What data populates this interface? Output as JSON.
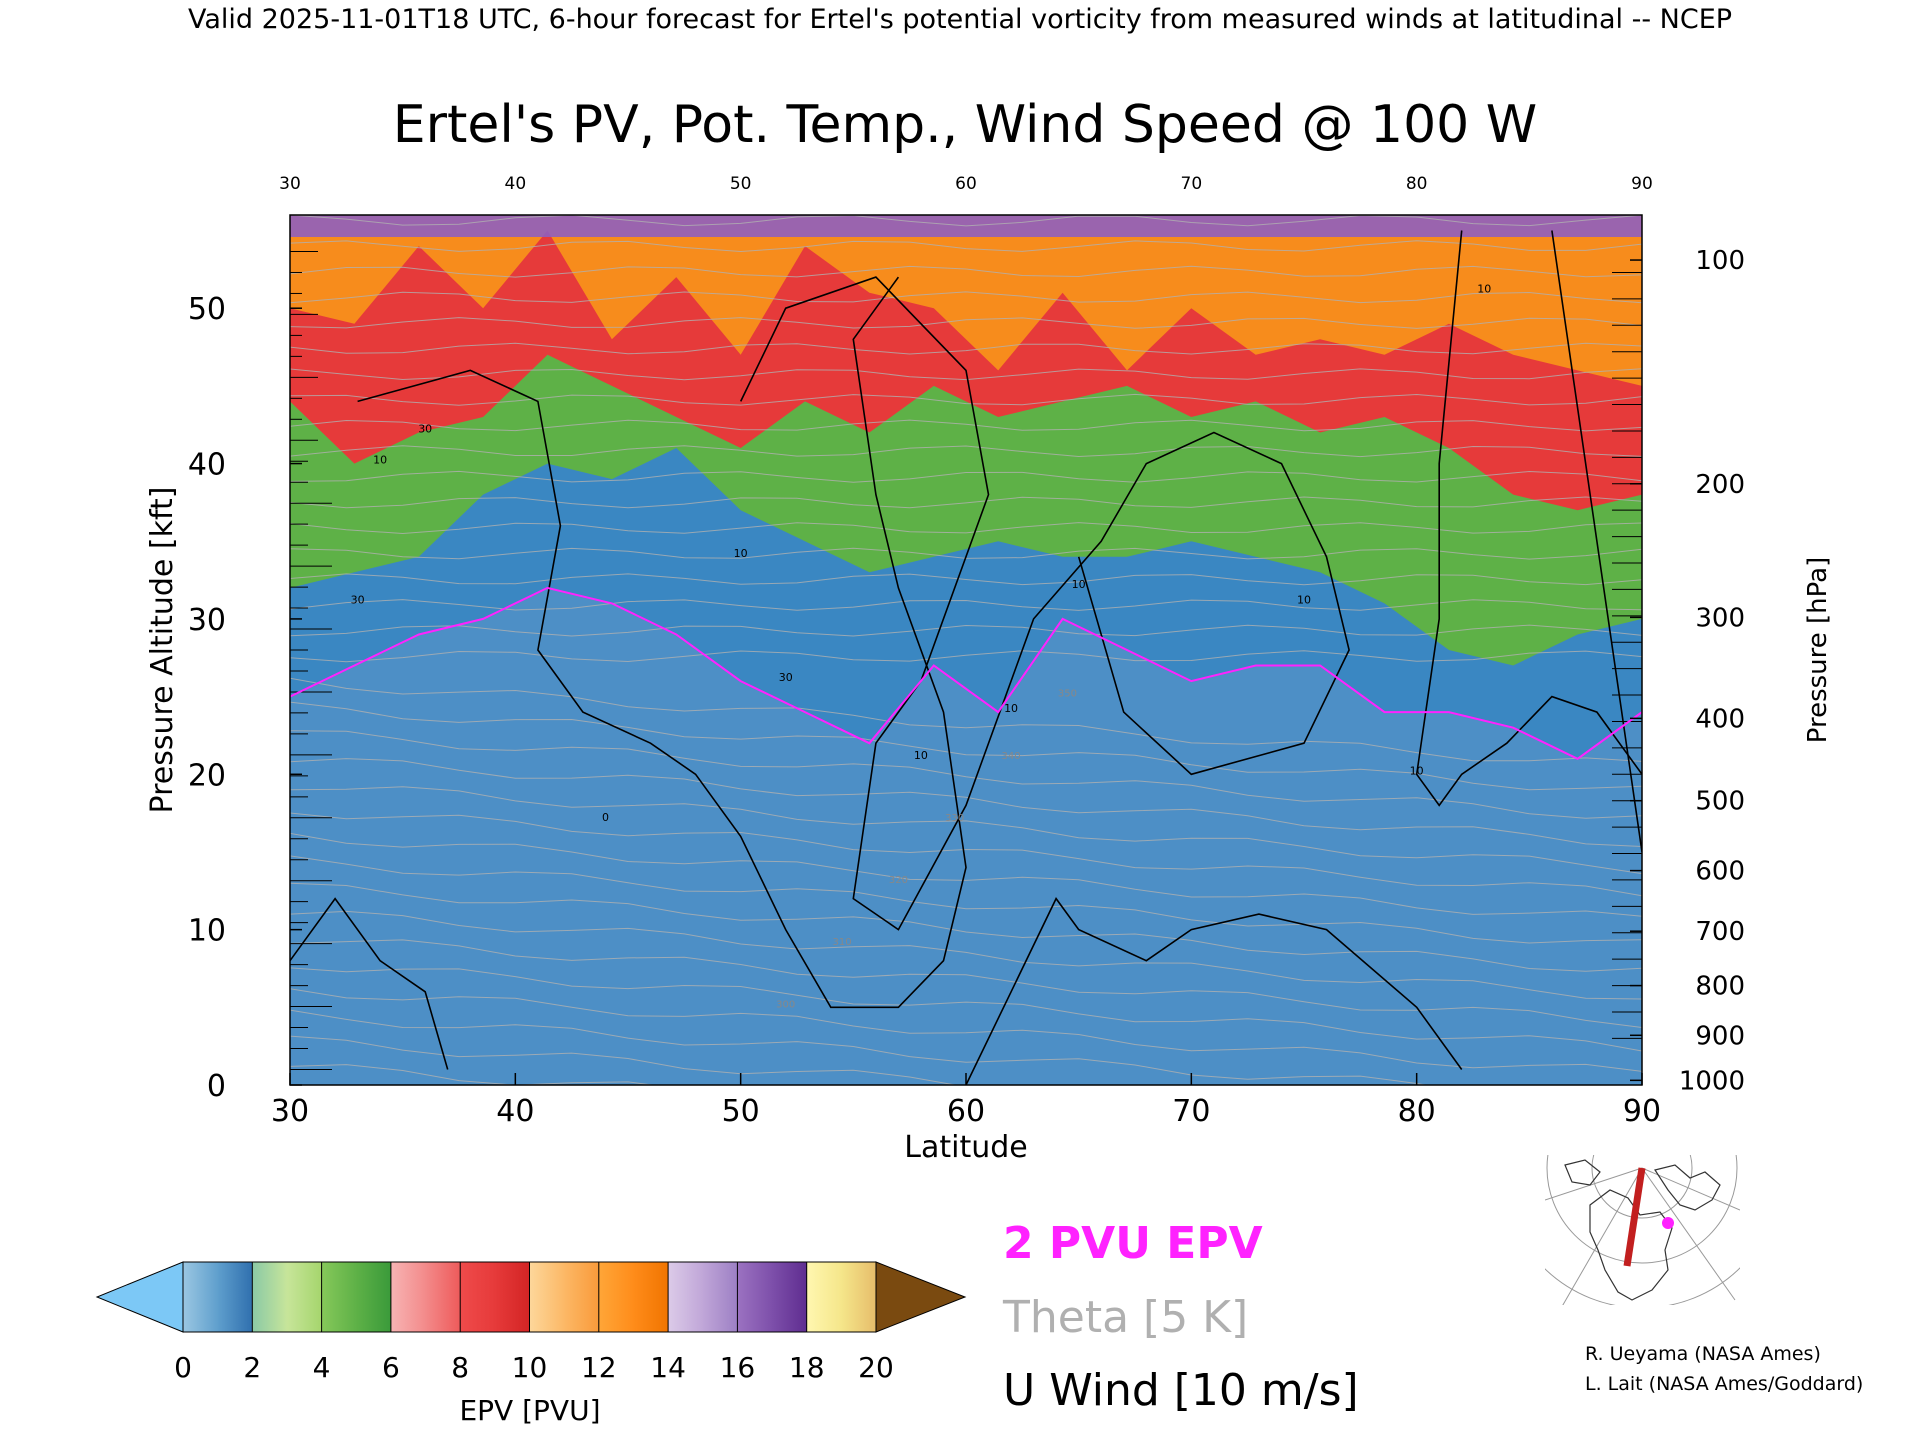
{
  "header": "Valid 2025-11-01T18 UTC, 6-hour forecast for Ertel's potential vorticity from measured winds at latitudinal -- NCEP",
  "chart_data": {
    "type": "heatmap",
    "title": "Ertel's PV, Pot. Temp., Wind Speed @ 100 W",
    "xlabel": "Latitude",
    "ylabel": "Pressure Altitude [kft]",
    "y2label": "Pressure [hPa]",
    "xlim": [
      30,
      90
    ],
    "ylim": [
      0,
      56
    ],
    "x_ticks": [
      "30",
      "40",
      "50",
      "60",
      "70",
      "80",
      "90"
    ],
    "top_ticks": [
      "30",
      "40",
      "50",
      "60",
      "70",
      "80",
      "90"
    ],
    "y_ticks": [
      "0",
      "10",
      "20",
      "30",
      "40",
      "50"
    ],
    "pressure_ticks": [
      {
        "label": "100",
        "kft": 53.1
      },
      {
        "label": "200",
        "kft": 38.7
      },
      {
        "label": "300",
        "kft": 30.1
      },
      {
        "label": "400",
        "kft": 23.6
      },
      {
        "label": "500",
        "kft": 18.3
      },
      {
        "label": "600",
        "kft": 13.8
      },
      {
        "label": "700",
        "kft": 9.9
      },
      {
        "label": "800",
        "kft": 6.4
      },
      {
        "label": "900",
        "kft": 3.2
      },
      {
        "label": "1000",
        "kft": 0.3
      }
    ],
    "colorbar": {
      "label": "EPV [PVU]",
      "ticks": [
        "0",
        "2",
        "4",
        "6",
        "8",
        "10",
        "12",
        "14",
        "16",
        "18",
        "20"
      ],
      "below_color": "#7cc8f6",
      "above_color": "#7a4a10",
      "bins": [
        {
          "from": 0,
          "to": 1,
          "colors": [
            "#9bc7e2",
            "#5f9fcd"
          ]
        },
        {
          "from": 1,
          "to": 2,
          "colors": [
            "#5f9fcd",
            "#2f6fae"
          ]
        },
        {
          "from": 2,
          "to": 3,
          "colors": [
            "#8ac9a6",
            "#c7e59a"
          ]
        },
        {
          "from": 3,
          "to": 4,
          "colors": [
            "#c7e59a",
            "#a5d56c"
          ]
        },
        {
          "from": 4,
          "to": 5,
          "colors": [
            "#86c85a",
            "#5eb147"
          ]
        },
        {
          "from": 5,
          "to": 6,
          "colors": [
            "#5eb147",
            "#3a9a3a"
          ]
        },
        {
          "from": 6,
          "to": 7,
          "colors": [
            "#f7b4b4",
            "#f38a8a"
          ]
        },
        {
          "from": 7,
          "to": 8,
          "colors": [
            "#f38a8a",
            "#ee5a5a"
          ]
        },
        {
          "from": 8,
          "to": 9,
          "colors": [
            "#ef4b4b",
            "#e63a3a"
          ]
        },
        {
          "from": 9,
          "to": 10,
          "colors": [
            "#e63a3a",
            "#d32424"
          ]
        },
        {
          "from": 10,
          "to": 11,
          "colors": [
            "#fdd79b",
            "#fcb866"
          ]
        },
        {
          "from": 11,
          "to": 12,
          "colors": [
            "#fcb866",
            "#f99a3a"
          ]
        },
        {
          "from": 12,
          "to": 13,
          "colors": [
            "#ffa638",
            "#ff8c1a"
          ]
        },
        {
          "from": 13,
          "to": 14,
          "colors": [
            "#ff8c1a",
            "#f07400"
          ]
        },
        {
          "from": 14,
          "to": 15,
          "colors": [
            "#dccbe8",
            "#c0a6d8"
          ]
        },
        {
          "from": 15,
          "to": 16,
          "colors": [
            "#c0a6d8",
            "#9c7fc4"
          ]
        },
        {
          "from": 16,
          "to": 17,
          "colors": [
            "#9b72c1",
            "#7d4faa"
          ]
        },
        {
          "from": 17,
          "to": 18,
          "colors": [
            "#7d4faa",
            "#5f2d90"
          ]
        },
        {
          "from": 18,
          "to": 19,
          "colors": [
            "#fff7b0",
            "#f5e68a"
          ]
        },
        {
          "from": 19,
          "to": 20,
          "colors": [
            "#f5e68a",
            "#e6bc6a"
          ]
        }
      ]
    },
    "layers": [
      {
        "name": "upper",
        "color": "#f78c1c",
        "heights_kft": [
          50,
          49,
          54,
          50,
          55,
          48,
          52,
          47,
          54,
          51,
          50,
          46,
          51,
          46,
          50,
          47,
          48,
          47,
          49,
          47,
          46,
          45
        ]
      },
      {
        "name": "middle",
        "color": "#e63a3a",
        "heights_kft": [
          44,
          40,
          42,
          43,
          47,
          45,
          43,
          41,
          44,
          42,
          45,
          43,
          44,
          45,
          43,
          44,
          42,
          43,
          41,
          38,
          37,
          38
        ]
      },
      {
        "name": "lower",
        "color": "#5eb147",
        "heights_kft": [
          32,
          33,
          34,
          38,
          40,
          39,
          41,
          37,
          35,
          33,
          34,
          35,
          34,
          34,
          35,
          34,
          33,
          31,
          28,
          27,
          29,
          30
        ]
      },
      {
        "name": "base",
        "color": "#3a87c2",
        "heights_kft": [
          25,
          27,
          29,
          30,
          32,
          31,
          29,
          26,
          24,
          22,
          27,
          24,
          30,
          28,
          26,
          27,
          27,
          24,
          24,
          23,
          21,
          24
        ]
      }
    ],
    "wind_contour_labels": [
      "10",
      "30",
      "10",
      "30",
      "10",
      "10",
      "10",
      "10",
      "10",
      "0",
      "30",
      "10"
    ],
    "theta_labels": [
      "300",
      "310",
      "320",
      "330",
      "340",
      "350"
    ],
    "wind_contours": [
      {
        "name": "subtropical-jet",
        "points": [
          [
            33,
            44
          ],
          [
            38,
            46
          ],
          [
            41,
            44
          ],
          [
            42,
            36
          ],
          [
            41,
            28
          ],
          [
            43,
            24
          ],
          [
            46,
            22
          ],
          [
            48,
            20
          ],
          [
            50,
            16
          ],
          [
            52,
            10
          ],
          [
            54,
            5
          ],
          [
            57,
            5
          ],
          [
            59,
            8
          ],
          [
            60,
            14
          ],
          [
            59,
            24
          ],
          [
            57,
            32
          ],
          [
            56,
            38
          ],
          [
            55,
            48
          ],
          [
            57,
            52
          ]
        ]
      },
      {
        "name": "polar-jet",
        "points": [
          [
            50,
            44
          ],
          [
            52,
            50
          ],
          [
            56,
            52
          ],
          [
            60,
            46
          ],
          [
            61,
            38
          ],
          [
            58,
            26
          ],
          [
            56,
            22
          ],
          [
            55,
            12
          ],
          [
            57,
            10
          ],
          [
            60,
            18
          ],
          [
            63,
            30
          ],
          [
            66,
            35
          ],
          [
            68,
            40
          ],
          [
            71,
            42
          ],
          [
            74,
            40
          ],
          [
            76,
            34
          ],
          [
            77,
            28
          ],
          [
            75,
            22
          ],
          [
            70,
            20
          ],
          [
            67,
            24
          ],
          [
            65,
            34
          ]
        ]
      },
      {
        "name": "low-level-1",
        "points": [
          [
            30,
            8
          ],
          [
            32,
            12
          ],
          [
            34,
            8
          ],
          [
            36,
            6
          ],
          [
            37,
            1
          ]
        ]
      },
      {
        "name": "low-level-2",
        "points": [
          [
            60,
            0
          ],
          [
            62,
            6
          ],
          [
            64,
            12
          ],
          [
            65,
            10
          ],
          [
            68,
            8
          ],
          [
            70,
            10
          ],
          [
            73,
            11
          ],
          [
            76,
            10
          ],
          [
            80,
            5
          ],
          [
            82,
            1
          ]
        ]
      },
      {
        "name": "high-arctic",
        "points": [
          [
            82,
            55
          ],
          [
            81,
            40
          ],
          [
            81,
            30
          ],
          [
            80,
            20
          ],
          [
            81,
            18
          ],
          [
            82,
            20
          ],
          [
            84,
            22
          ],
          [
            86,
            25
          ],
          [
            88,
            24
          ],
          [
            90,
            20
          ]
        ]
      },
      {
        "name": "edge-north",
        "points": [
          [
            86,
            55
          ],
          [
            87,
            45
          ],
          [
            88,
            35
          ],
          [
            89,
            25
          ],
          [
            90,
            15
          ]
        ]
      }
    ],
    "legend": {
      "epv_line": {
        "text": "2 PVU EPV",
        "color": "#ff22ff"
      },
      "theta": {
        "text": "Theta [5 K]",
        "color": "#b0b0b0"
      },
      "wind": {
        "text": "U Wind [10 m/s]",
        "color": "#000000"
      }
    },
    "credits": [
      "R. Ueyama (NASA Ames)",
      "L. Lait (NASA Ames/Goddard)"
    ]
  }
}
